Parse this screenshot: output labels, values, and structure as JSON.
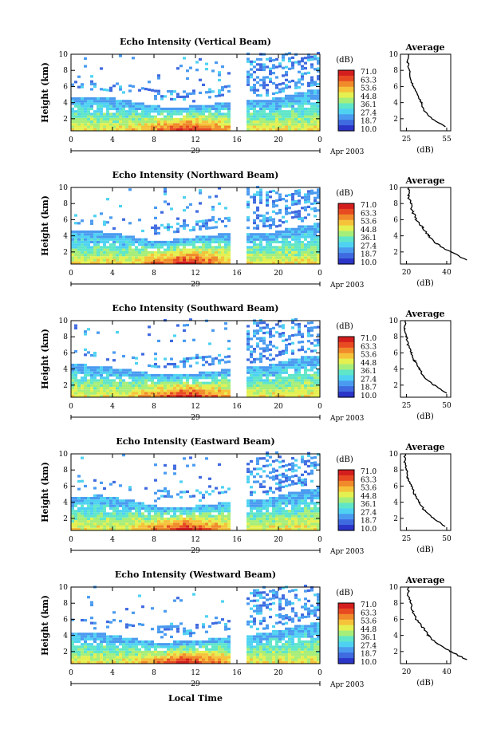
{
  "shared": {
    "colorbar_unit": "(dB)",
    "colorbar_ticks": [
      "71.0",
      "63.3",
      "53.6",
      "44.8",
      "36.1",
      "27.4",
      "18.7",
      "10.0"
    ],
    "colorscale": [
      "#2b35c8",
      "#3f6ae0",
      "#4a9bf0",
      "#4fd2f2",
      "#5fe6c8",
      "#a6ee7a",
      "#e4f050",
      "#f6c23a",
      "#f08a2a",
      "#e84a22",
      "#d41e1e"
    ],
    "height_ticks": [
      "10",
      "8",
      "6",
      "4",
      "2"
    ],
    "height_label": "Height (km)",
    "time_ticks": [
      "0",
      "4",
      "8",
      "12",
      "16",
      "20",
      "0"
    ],
    "day_label": "29",
    "month_year_label": "Apr 2003",
    "avg_title": "Average",
    "avg_unit_label": "(dB)",
    "xlabel": "Local Time"
  },
  "chart_data": [
    {
      "type": "heatmap",
      "title": "Echo Intensity (Vertical Beam)",
      "xlabel": "Local Time",
      "ylabel": "Height (km)",
      "xlim": [
        0,
        24
      ],
      "ylim": [
        0.5,
        10
      ],
      "data_gap_hours": [
        15.5,
        16.7
      ],
      "top_layer_km": [
        4.5,
        4.6,
        4.1,
        3.4,
        3.3,
        3.6,
        4.2,
        4.1,
        5.0,
        5.6
      ],
      "clim_db": [
        10.0,
        71.0
      ],
      "average_profile": {
        "type": "line",
        "title": "Average",
        "xlabel": "(dB)",
        "xticks": [
          "25",
          "55"
        ],
        "height_km": [
          1,
          2,
          3,
          4,
          5,
          6,
          7,
          8,
          9,
          10
        ],
        "db": [
          54,
          44,
          38,
          36,
          33,
          30,
          28,
          27,
          26,
          26
        ]
      }
    },
    {
      "type": "heatmap",
      "title": "Echo Intensity (Northward Beam)",
      "xlabel": "Local Time",
      "ylabel": "Height (km)",
      "xlim": [
        0,
        24
      ],
      "ylim": [
        0.5,
        10
      ],
      "data_gap_hours": [
        15.5,
        16.7
      ],
      "top_layer_km": [
        4.5,
        4.4,
        3.9,
        3.2,
        3.5,
        3.9,
        4.3,
        4.1,
        4.9,
        5.5
      ],
      "clim_db": [
        10.0,
        71.0
      ],
      "average_profile": {
        "type": "line",
        "title": "Average",
        "xlabel": "(dB)",
        "xticks": [
          "20",
          "40"
        ],
        "height_km": [
          1,
          2,
          3,
          4,
          5,
          6,
          7,
          8,
          9,
          10
        ],
        "db": [
          50,
          42,
          35,
          31,
          28,
          25,
          23,
          22,
          21,
          21
        ]
      }
    },
    {
      "type": "heatmap",
      "title": "Echo Intensity (Southward Beam)",
      "xlabel": "Local Time",
      "ylabel": "Height (km)",
      "xlim": [
        0,
        24
      ],
      "ylim": [
        0.5,
        10
      ],
      "data_gap_hours": [
        15.5,
        16.7
      ],
      "top_layer_km": [
        4.5,
        4.2,
        3.8,
        3.2,
        3.2,
        3.5,
        4.0,
        4.2,
        5.2,
        5.6
      ],
      "clim_db": [
        10.0,
        71.0
      ],
      "average_profile": {
        "type": "line",
        "title": "Average",
        "xlabel": "(dB)",
        "xticks": [
          "25",
          "50"
        ],
        "height_km": [
          1,
          2,
          3,
          4,
          5,
          6,
          7,
          8,
          9,
          10
        ],
        "db": [
          50,
          42,
          36,
          33,
          30,
          28,
          26,
          25,
          24,
          24
        ]
      }
    },
    {
      "type": "heatmap",
      "title": "Echo Intensity (Eastward Beam)",
      "xlabel": "Local Time",
      "ylabel": "Height (km)",
      "xlim": [
        0,
        24
      ],
      "ylim": [
        0.5,
        10
      ],
      "data_gap_hours": [
        15.5,
        16.7
      ],
      "top_layer_km": [
        4.5,
        4.7,
        4.2,
        3.4,
        3.2,
        3.6,
        4.1,
        4.2,
        5.2,
        5.7
      ],
      "clim_db": [
        10.0,
        71.0
      ],
      "average_profile": {
        "type": "line",
        "title": "Average",
        "xlabel": "(dB)",
        "xticks": [
          "25",
          "50"
        ],
        "height_km": [
          1,
          2,
          3,
          4,
          5,
          6,
          7,
          8,
          9,
          10
        ],
        "db": [
          49,
          42,
          36,
          33,
          30,
          28,
          26,
          25,
          24,
          24
        ]
      }
    },
    {
      "type": "heatmap",
      "title": "Echo Intensity (Westward Beam)",
      "xlabel": "Local Time",
      "ylabel": "Height (km)",
      "xlim": [
        0,
        24
      ],
      "ylim": [
        0.5,
        10
      ],
      "data_gap_hours": [
        15.5,
        16.7
      ],
      "top_layer_km": [
        4.2,
        4.1,
        3.6,
        3.0,
        3.1,
        3.4,
        3.9,
        4.1,
        5.0,
        5.5
      ],
      "clim_db": [
        10.0,
        71.0
      ],
      "average_profile": {
        "type": "line",
        "title": "Average",
        "xlabel": "(dB)",
        "xticks": [
          "20",
          "40"
        ],
        "height_km": [
          1,
          2,
          3,
          4,
          5,
          6,
          7,
          8,
          9,
          10
        ],
        "db": [
          50,
          42,
          35,
          31,
          28,
          25,
          23,
          22,
          21,
          21
        ]
      }
    }
  ]
}
